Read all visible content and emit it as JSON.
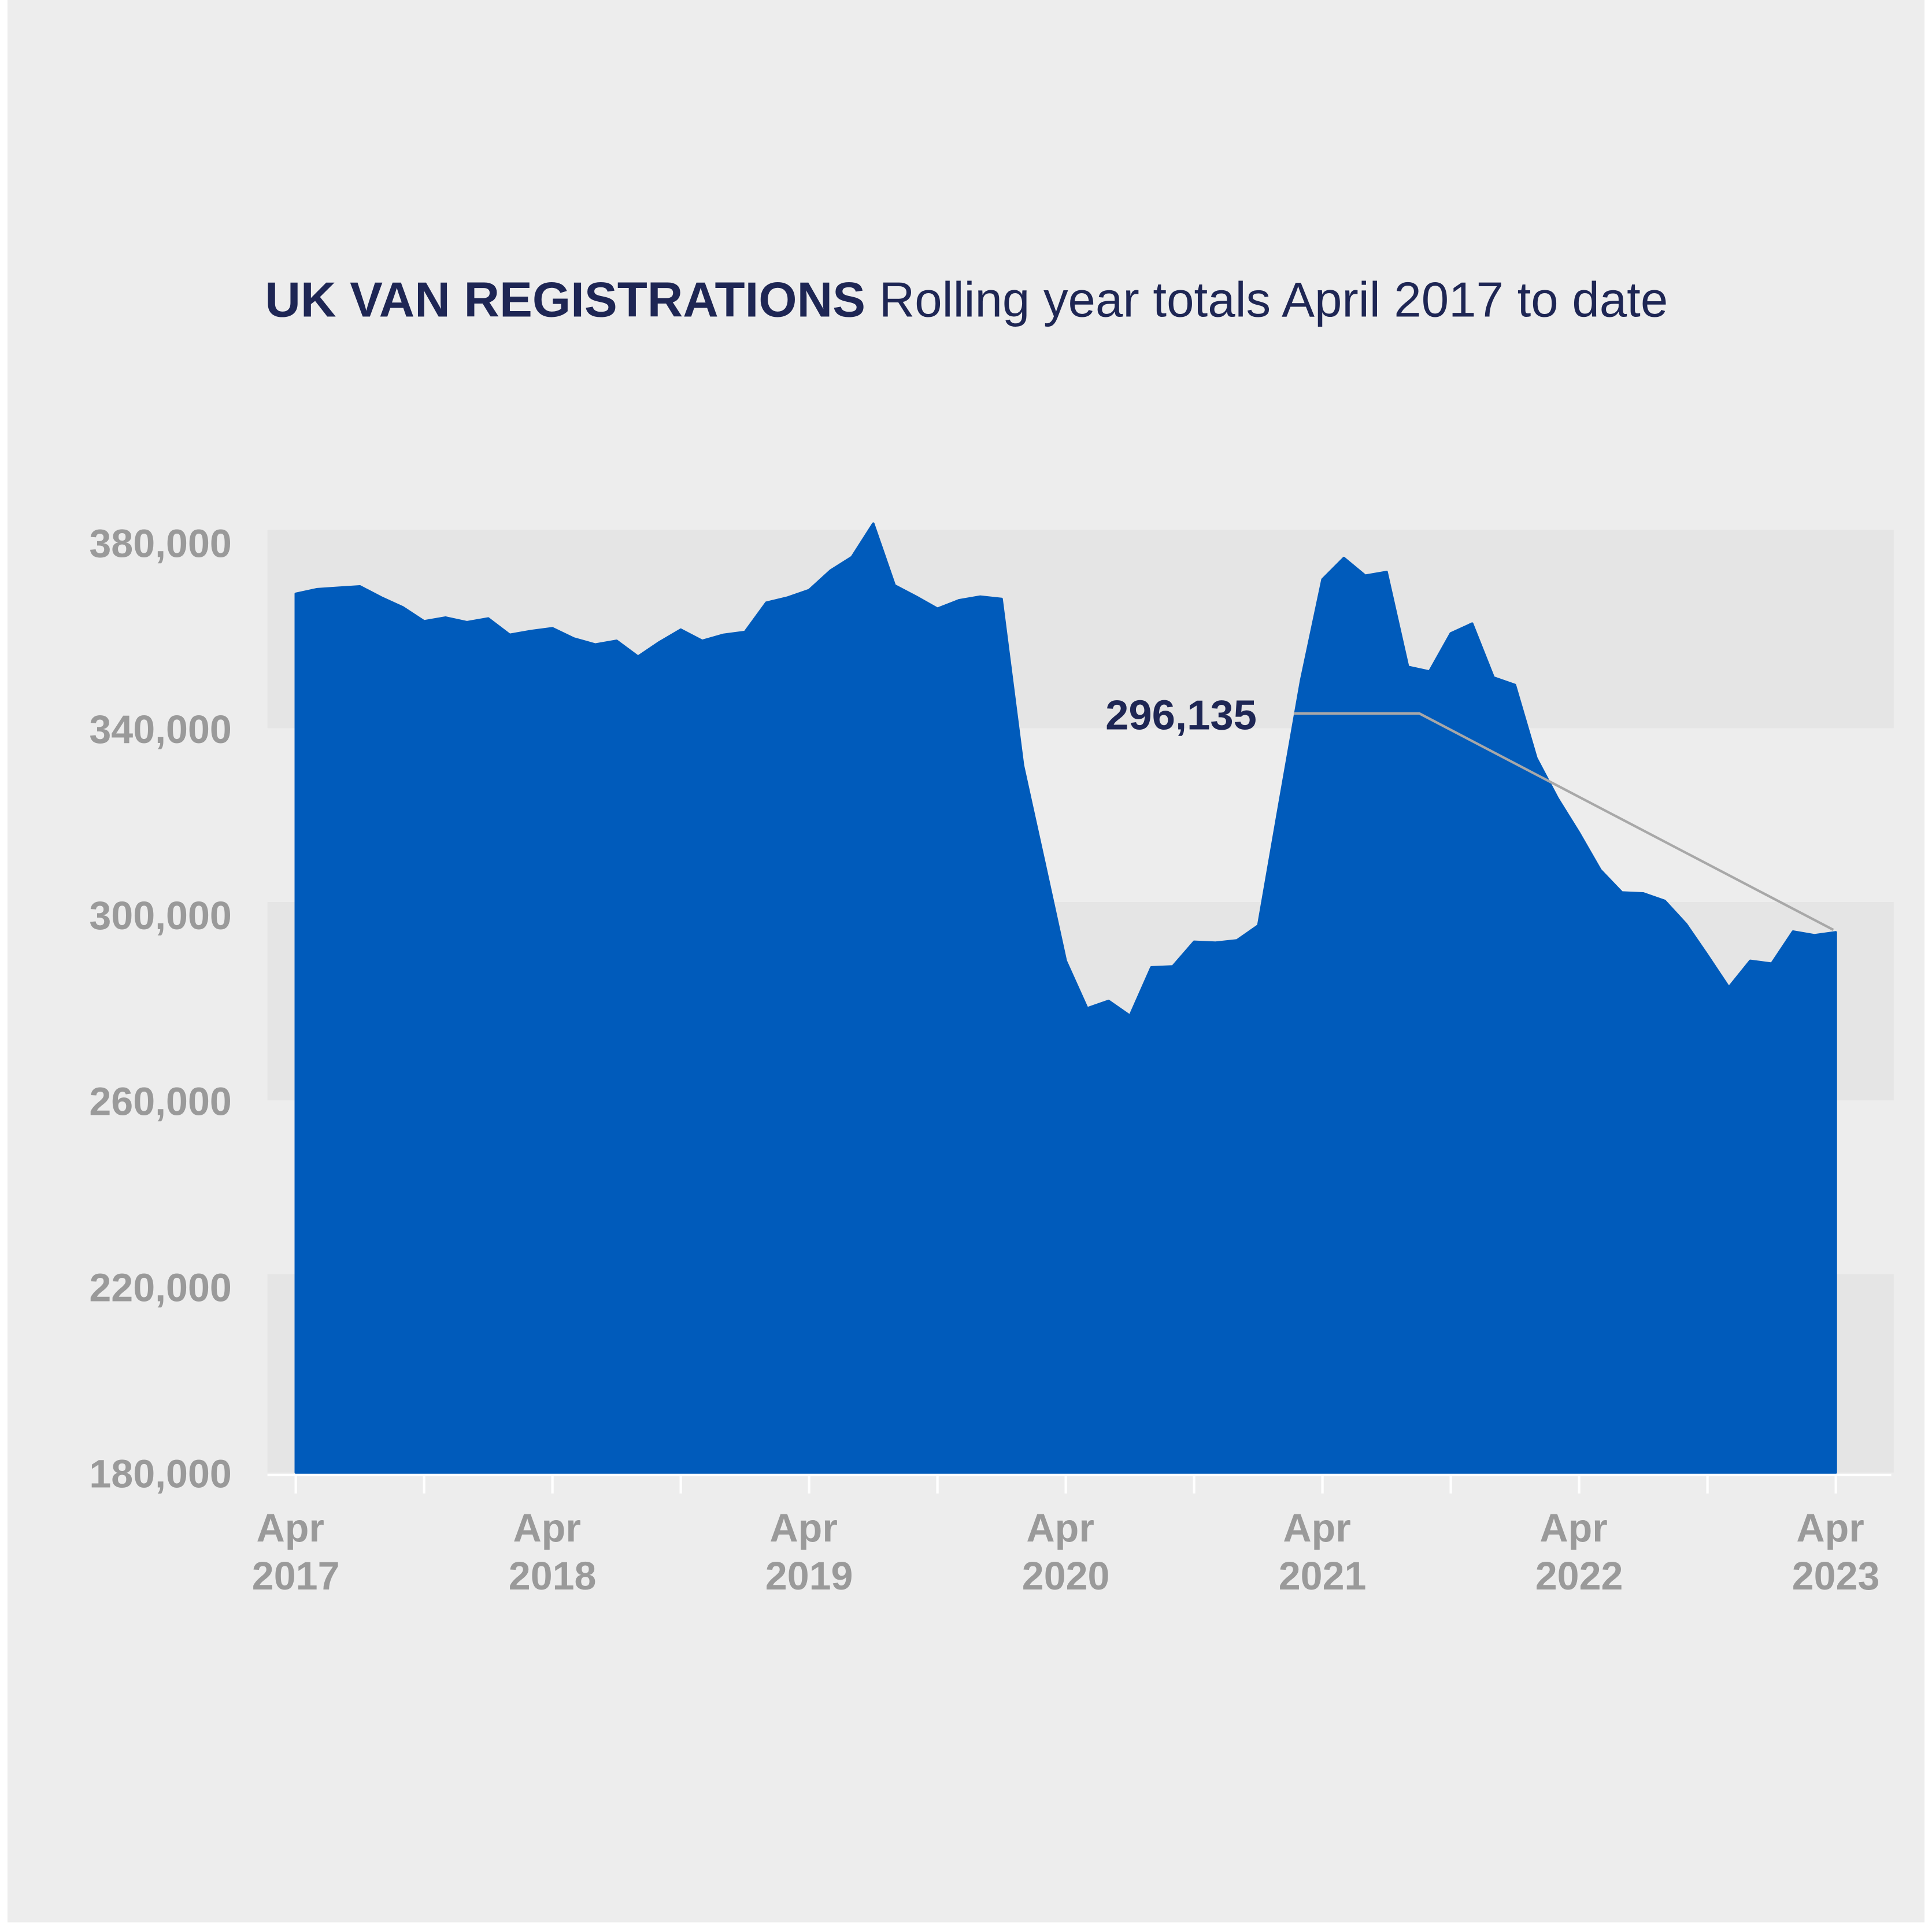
{
  "chart_data": {
    "type": "area",
    "title": "UK VAN REGISTRATIONS",
    "subtitle": "Rolling year totals April 2017 to date",
    "categories": [
      "Apr 2017",
      null,
      null,
      null,
      null,
      null,
      null,
      null,
      null,
      null,
      null,
      null,
      "Apr 2018",
      null,
      null,
      null,
      null,
      null,
      null,
      null,
      null,
      null,
      null,
      null,
      "Apr 2019",
      null,
      null,
      null,
      null,
      null,
      null,
      null,
      null,
      null,
      null,
      null,
      "Apr 2020",
      null,
      null,
      null,
      null,
      null,
      null,
      null,
      null,
      null,
      null,
      null,
      "Apr 2021",
      null,
      null,
      null,
      null,
      null,
      null,
      null,
      null,
      null,
      null,
      null,
      "Apr 2022",
      null,
      null,
      null,
      null,
      null,
      null,
      null,
      null,
      null,
      null,
      null,
      "Apr 2023"
    ],
    "values": [
      368900,
      369900,
      370200,
      370500,
      368100,
      366000,
      363000,
      363800,
      362800,
      363600,
      360100,
      360900,
      361500,
      359300,
      358000,
      358800,
      355400,
      358500,
      361200,
      358800,
      360100,
      360700,
      367000,
      368100,
      369700,
      373900,
      376800,
      384000,
      370700,
      368300,
      365700,
      367500,
      368300,
      367800,
      332000,
      311100,
      290000,
      279800,
      281400,
      278200,
      288600,
      288800,
      294100,
      293900,
      294400,
      297600,
      324100,
      350300,
      372000,
      376600,
      372800,
      373600,
      353200,
      352200,
      360400,
      362500,
      350900,
      349300,
      333600,
      324900,
      317500,
      309500,
      304700,
      304500,
      302900,
      297900,
      291200,
      284300,
      290000,
      289400,
      296300,
      295500,
      296135
    ],
    "value_labels": [
      null,
      null,
      null,
      null,
      null,
      null,
      null,
      null,
      null,
      null,
      null,
      null,
      null,
      null,
      null,
      null,
      null,
      null,
      null,
      null,
      null,
      null,
      null,
      null,
      null,
      null,
      null,
      null,
      null,
      null,
      null,
      null,
      null,
      null,
      null,
      null,
      null,
      null,
      null,
      null,
      null,
      null,
      null,
      null,
      null,
      null,
      null,
      null,
      null,
      null,
      null,
      null,
      null,
      null,
      null,
      null,
      null,
      null,
      null,
      null,
      null,
      null,
      null,
      null,
      null,
      null,
      null,
      null,
      null,
      null,
      null,
      null,
      "296,135"
    ],
    "color": "#005bbb",
    "ylim": [
      180000,
      380000
    ],
    "yticks": [
      {
        "value": 180000,
        "label": "180,000"
      },
      {
        "value": 220000,
        "label": "220,000"
      },
      {
        "value": 260000,
        "label": "260,000"
      },
      {
        "value": 300000,
        "label": "300,000"
      },
      {
        "value": 340000,
        "label": "340,000"
      },
      {
        "value": 380000,
        "label": "380,000"
      }
    ],
    "grid": "bands"
  }
}
